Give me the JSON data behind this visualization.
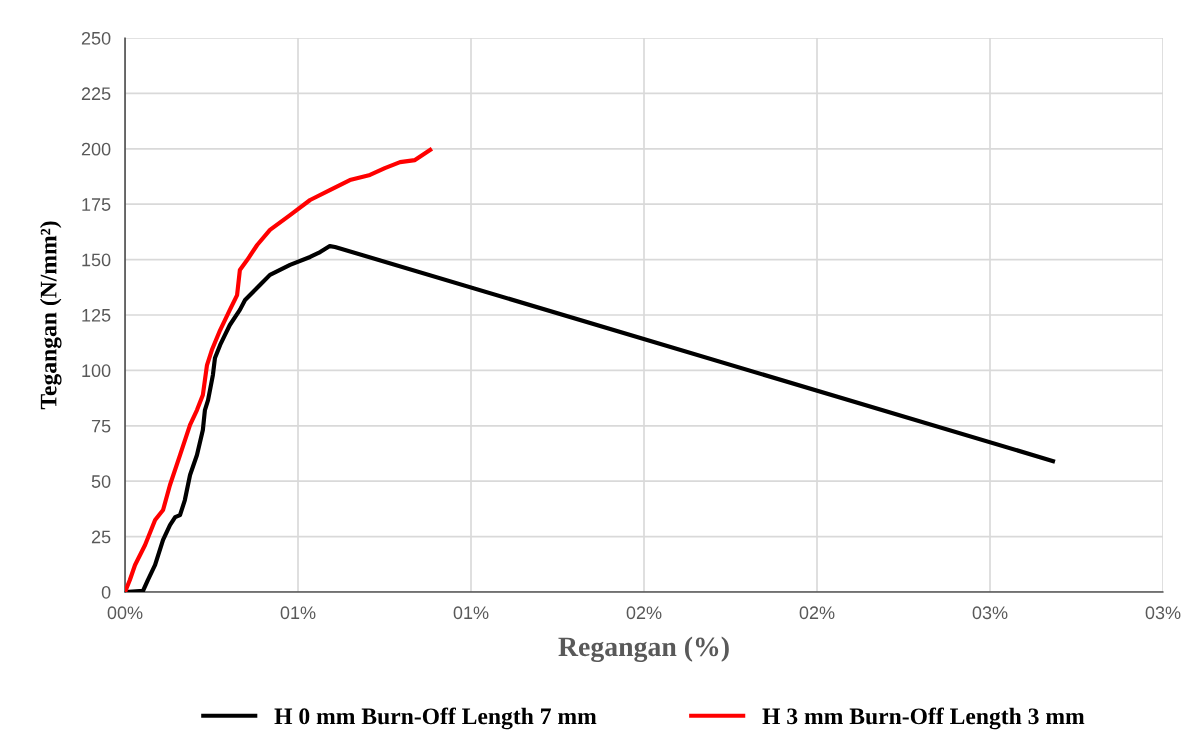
{
  "chart_data": {
    "type": "line",
    "xlabel": "Regangan (%)",
    "ylabel": "Tegangan (N/mm²)",
    "xlim": [
      0,
      3.0
    ],
    "xticks": [
      {
        "value": 0,
        "label": "00%"
      },
      {
        "value": 0.5,
        "label": "01%"
      },
      {
        "value": 1.0,
        "label": "01%"
      },
      {
        "value": 1.5,
        "label": "02%"
      },
      {
        "value": 2.0,
        "label": "02%"
      },
      {
        "value": 2.5,
        "label": "03%"
      },
      {
        "value": 3.0,
        "label": "03%"
      }
    ],
    "ylim": [
      0,
      250
    ],
    "yticks": [
      0,
      25,
      50,
      75,
      100,
      125,
      150,
      175,
      200,
      225,
      250
    ],
    "grid": true,
    "legend": "bottom",
    "marker": "none",
    "line_style": "solid",
    "series": [
      {
        "name": "H 0 mm Burn-Off Length 7 mm",
        "color": "#000000",
        "x": [
          0,
          0.052,
          0.066,
          0.087,
          0.11,
          0.13,
          0.145,
          0.159,
          0.173,
          0.188,
          0.208,
          0.225,
          0.231,
          0.24,
          0.254,
          0.26,
          0.275,
          0.289,
          0.303,
          0.332,
          0.347,
          0.39,
          0.419,
          0.477,
          0.535,
          0.564,
          0.592,
          0.607,
          2.682
        ],
        "values": [
          0,
          0.5,
          5.4,
          12.2,
          23.5,
          30.2,
          33.8,
          34.7,
          41.5,
          52.8,
          61.8,
          73.1,
          82.1,
          86.6,
          97.9,
          105.6,
          111.5,
          116.0,
          120.5,
          127.3,
          131.8,
          138.5,
          143.1,
          147.6,
          151.2,
          153.4,
          156.1,
          155.7,
          59.1
        ]
      },
      {
        "name": "H 3 mm Burn-Off Length 3 mm",
        "color": "#ff0000",
        "x": [
          0,
          0.014,
          0.029,
          0.058,
          0.087,
          0.11,
          0.13,
          0.159,
          0.188,
          0.208,
          0.225,
          0.231,
          0.237,
          0.251,
          0.275,
          0.303,
          0.324,
          0.332,
          0.353,
          0.382,
          0.419,
          0.477,
          0.535,
          0.592,
          0.65,
          0.708,
          0.751,
          0.795,
          0.838,
          0.882
        ],
        "values": [
          0,
          5.4,
          12.2,
          21.2,
          32.5,
          37.0,
          48.3,
          61.8,
          75.4,
          82.1,
          88.9,
          95.7,
          102.4,
          109.2,
          118.2,
          127.3,
          134.0,
          145.3,
          149.8,
          156.6,
          163.4,
          170.1,
          176.9,
          181.4,
          185.9,
          188.2,
          191.3,
          194.0,
          194.9,
          199.5
        ]
      }
    ]
  }
}
